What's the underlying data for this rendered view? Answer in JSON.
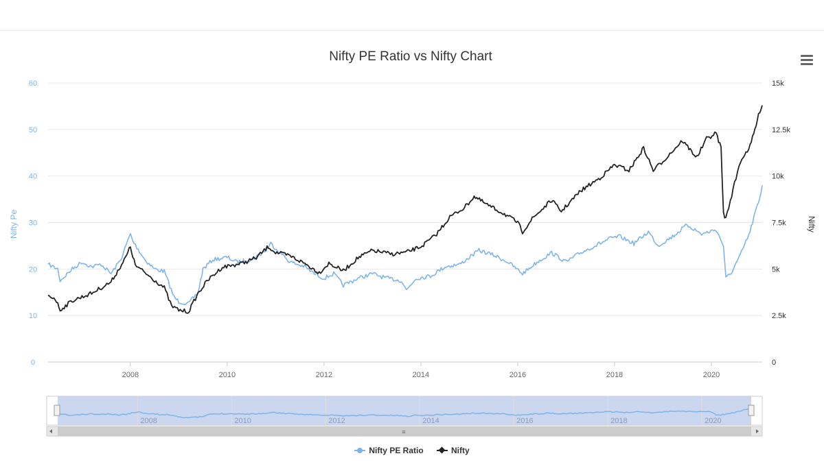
{
  "chart_data": {
    "type": "line",
    "title": "Nifty PE Ratio vs Nifty Chart",
    "x_ticks": [
      "2008",
      "2010",
      "2012",
      "2014",
      "2016",
      "2018",
      "2020"
    ],
    "navigator_ticks": [
      "2008",
      "2010",
      "2012",
      "2014",
      "2016",
      "2018",
      "2020"
    ],
    "xlim": [
      2006.3,
      2021.05
    ],
    "y_left": {
      "label": "Nifty Pe",
      "ticks": [
        "0",
        "10",
        "20",
        "30",
        "40",
        "50",
        "60"
      ],
      "lim": [
        0,
        60
      ],
      "color": "#7cb5ec"
    },
    "y_right": {
      "label": "Nifty",
      "ticks": [
        "0",
        "2.5k",
        "5k",
        "7.5k",
        "10k",
        "12.5k",
        "15k"
      ],
      "lim": [
        0,
        15000
      ],
      "color": "#333333"
    },
    "legend_position": "bottom-center",
    "grid": true,
    "series": [
      {
        "name": "Nifty PE Ratio",
        "axis": "left",
        "color": "#7cb5ec",
        "points": [
          [
            2006.3,
            21
          ],
          [
            2006.5,
            20
          ],
          [
            2006.55,
            17.5
          ],
          [
            2006.8,
            20
          ],
          [
            2007.0,
            21.5
          ],
          [
            2007.2,
            20.5
          ],
          [
            2007.4,
            21
          ],
          [
            2007.6,
            19
          ],
          [
            2007.8,
            22
          ],
          [
            2008.0,
            27.5
          ],
          [
            2008.05,
            26
          ],
          [
            2008.3,
            22
          ],
          [
            2008.5,
            20
          ],
          [
            2008.7,
            19.5
          ],
          [
            2008.9,
            14
          ],
          [
            2009.0,
            13
          ],
          [
            2009.2,
            12.5
          ],
          [
            2009.4,
            15
          ],
          [
            2009.5,
            20
          ],
          [
            2009.7,
            22
          ],
          [
            2010.0,
            22.5
          ],
          [
            2010.2,
            21.5
          ],
          [
            2010.5,
            22
          ],
          [
            2010.8,
            24
          ],
          [
            2010.9,
            25.5
          ],
          [
            2011.1,
            23.5
          ],
          [
            2011.3,
            21.5
          ],
          [
            2011.6,
            20.5
          ],
          [
            2011.8,
            19
          ],
          [
            2012.0,
            18
          ],
          [
            2012.2,
            19
          ],
          [
            2012.4,
            16.5
          ],
          [
            2012.7,
            18
          ],
          [
            2013.0,
            19
          ],
          [
            2013.3,
            18
          ],
          [
            2013.6,
            17.5
          ],
          [
            2013.7,
            15.5
          ],
          [
            2013.9,
            18
          ],
          [
            2014.2,
            18.5
          ],
          [
            2014.5,
            20.5
          ],
          [
            2014.8,
            21
          ],
          [
            2015.0,
            22.5
          ],
          [
            2015.2,
            24
          ],
          [
            2015.5,
            23
          ],
          [
            2015.8,
            21.5
          ],
          [
            2016.1,
            19
          ],
          [
            2016.4,
            21.5
          ],
          [
            2016.7,
            23.5
          ],
          [
            2017.0,
            21.5
          ],
          [
            2017.3,
            23.5
          ],
          [
            2017.6,
            25
          ],
          [
            2017.9,
            26.5
          ],
          [
            2018.1,
            27
          ],
          [
            2018.4,
            25.5
          ],
          [
            2018.7,
            28
          ],
          [
            2018.9,
            25
          ],
          [
            2019.2,
            27
          ],
          [
            2019.5,
            29.5
          ],
          [
            2019.8,
            27.5
          ],
          [
            2020.1,
            28.5
          ],
          [
            2020.25,
            25
          ],
          [
            2020.3,
            18
          ],
          [
            2020.4,
            19
          ],
          [
            2020.6,
            23
          ],
          [
            2020.8,
            28
          ],
          [
            2020.9,
            32
          ],
          [
            2021.0,
            35
          ],
          [
            2021.05,
            38
          ]
        ]
      },
      {
        "name": "Nifty",
        "axis": "right",
        "color": "#222222",
        "points": [
          [
            2006.3,
            3600
          ],
          [
            2006.45,
            3400
          ],
          [
            2006.55,
            2800
          ],
          [
            2006.8,
            3300
          ],
          [
            2007.2,
            3700
          ],
          [
            2007.6,
            4300
          ],
          [
            2007.9,
            5600
          ],
          [
            2008.0,
            6200
          ],
          [
            2008.1,
            5200
          ],
          [
            2008.3,
            4800
          ],
          [
            2008.5,
            4400
          ],
          [
            2008.7,
            4000
          ],
          [
            2008.85,
            3000
          ],
          [
            2009.0,
            2800
          ],
          [
            2009.2,
            2700
          ],
          [
            2009.4,
            3700
          ],
          [
            2009.6,
            4400
          ],
          [
            2009.9,
            5100
          ],
          [
            2010.3,
            5300
          ],
          [
            2010.6,
            5600
          ],
          [
            2010.85,
            6200
          ],
          [
            2011.0,
            5900
          ],
          [
            2011.3,
            5700
          ],
          [
            2011.6,
            5300
          ],
          [
            2011.9,
            4800
          ],
          [
            2012.1,
            5300
          ],
          [
            2012.4,
            4900
          ],
          [
            2012.7,
            5600
          ],
          [
            2013.0,
            6000
          ],
          [
            2013.4,
            5800
          ],
          [
            2013.7,
            5900
          ],
          [
            2014.0,
            6200
          ],
          [
            2014.3,
            6800
          ],
          [
            2014.6,
            7800
          ],
          [
            2014.9,
            8300
          ],
          [
            2015.1,
            8900
          ],
          [
            2015.4,
            8400
          ],
          [
            2015.7,
            8000
          ],
          [
            2016.0,
            7500
          ],
          [
            2016.1,
            7000
          ],
          [
            2016.3,
            7700
          ],
          [
            2016.7,
            8700
          ],
          [
            2016.9,
            8100
          ],
          [
            2017.3,
            9200
          ],
          [
            2017.7,
            9900
          ],
          [
            2018.0,
            10600
          ],
          [
            2018.3,
            10300
          ],
          [
            2018.6,
            11500
          ],
          [
            2018.8,
            10300
          ],
          [
            2019.0,
            10800
          ],
          [
            2019.4,
            11900
          ],
          [
            2019.7,
            11000
          ],
          [
            2019.9,
            12000
          ],
          [
            2020.1,
            12300
          ],
          [
            2020.2,
            11500
          ],
          [
            2020.25,
            8000
          ],
          [
            2020.3,
            7700
          ],
          [
            2020.45,
            9300
          ],
          [
            2020.6,
            10800
          ],
          [
            2020.8,
            11600
          ],
          [
            2020.9,
            12500
          ],
          [
            2021.0,
            13500
          ],
          [
            2021.05,
            13800
          ]
        ]
      }
    ]
  }
}
